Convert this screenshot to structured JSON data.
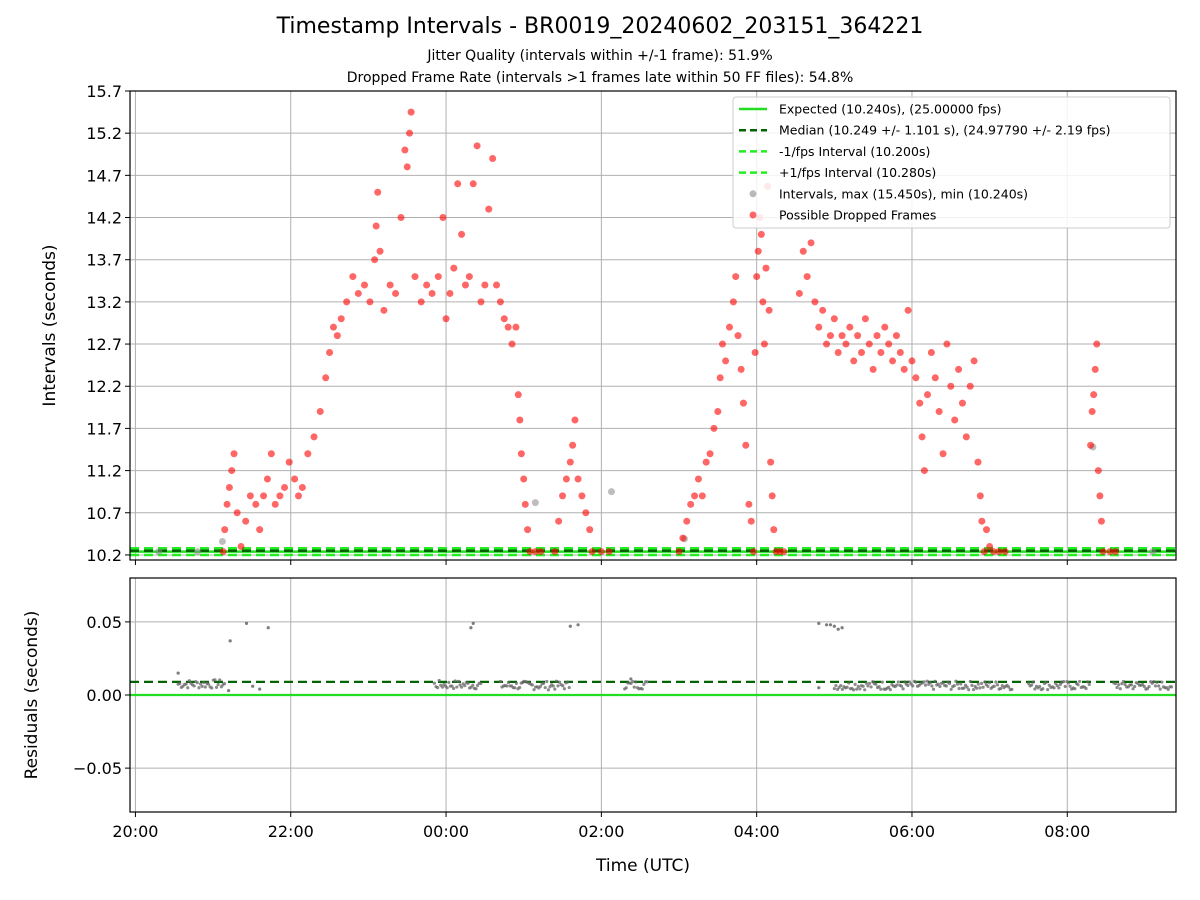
{
  "chart_data": [
    {
      "type": "scatter",
      "title": "Timestamp Intervals - BR0019_20240602_203151_364221",
      "subtitle_lines": [
        "Jitter Quality (intervals within +/-1 frame): 51.9%",
        "Dropped Frame Rate (intervals >1 frames late within 50 FF files): 54.8%"
      ],
      "xlabel": "",
      "ylabel": "Intervals (seconds)",
      "x_unit": "hours since 20:00 UTC",
      "xlim": [
        -0.07,
        13.4
      ],
      "ylim": [
        10.14,
        15.7
      ],
      "yticks": [
        10.2,
        10.7,
        11.2,
        11.7,
        12.2,
        12.7,
        13.2,
        13.7,
        14.2,
        14.7,
        15.2,
        15.7
      ],
      "ytick_labels": [
        "10.2",
        "10.7",
        "11.2",
        "11.7",
        "12.2",
        "12.7",
        "13.2",
        "13.7",
        "14.2",
        "14.7",
        "15.2",
        "15.7"
      ],
      "grid": true,
      "legend_position": "top-right",
      "legend": [
        "Expected (10.240s), (25.00000 fps)",
        "Median (10.249 +/- 1.101 s), (24.97790 +/- 2.19 fps)",
        "-1/fps Interval (10.200s)",
        "+1/fps Interval (10.280s)",
        "Intervals, max (15.450s), min (10.240s)",
        "Possible Dropped Frames"
      ],
      "reference_lines": [
        {
          "name": "Expected",
          "y": 10.24,
          "color": "#22dd22",
          "style": "solid"
        },
        {
          "name": "Median",
          "y": 10.249,
          "color": "#006400",
          "style": "dashed"
        },
        {
          "name": "-1/fps",
          "y": 10.2,
          "color": "#22ee22",
          "style": "dashed"
        },
        {
          "name": "+1/fps",
          "y": 10.28,
          "color": "#22ee22",
          "style": "dashed"
        }
      ],
      "series": [
        {
          "name": "Possible Dropped Frames",
          "color": "#ff0000",
          "points": [
            [
              1.13,
              10.24
            ],
            [
              1.15,
              10.5
            ],
            [
              1.18,
              10.8
            ],
            [
              1.21,
              11.0
            ],
            [
              1.24,
              11.2
            ],
            [
              1.27,
              11.4
            ],
            [
              1.31,
              10.7
            ],
            [
              1.36,
              10.3
            ],
            [
              1.42,
              10.6
            ],
            [
              1.48,
              10.9
            ],
            [
              1.55,
              10.8
            ],
            [
              1.6,
              10.5
            ],
            [
              1.65,
              10.9
            ],
            [
              1.7,
              11.1
            ],
            [
              1.75,
              11.4
            ],
            [
              1.8,
              10.8
            ],
            [
              1.86,
              10.9
            ],
            [
              1.92,
              11.0
            ],
            [
              1.98,
              11.3
            ],
            [
              2.05,
              11.1
            ],
            [
              2.1,
              10.9
            ],
            [
              2.15,
              11.0
            ],
            [
              2.22,
              11.4
            ],
            [
              2.3,
              11.6
            ],
            [
              2.38,
              11.9
            ],
            [
              2.45,
              12.3
            ],
            [
              2.5,
              12.6
            ],
            [
              2.55,
              12.9
            ],
            [
              2.6,
              12.8
            ],
            [
              2.65,
              13.0
            ],
            [
              2.72,
              13.2
            ],
            [
              2.8,
              13.5
            ],
            [
              2.87,
              13.3
            ],
            [
              2.95,
              13.4
            ],
            [
              3.02,
              13.2
            ],
            [
              3.08,
              13.7
            ],
            [
              3.1,
              14.1
            ],
            [
              3.12,
              14.5
            ],
            [
              3.15,
              13.8
            ],
            [
              3.2,
              13.1
            ],
            [
              3.28,
              13.4
            ],
            [
              3.35,
              13.3
            ],
            [
              3.42,
              14.2
            ],
            [
              3.47,
              15.0
            ],
            [
              3.5,
              14.8
            ],
            [
              3.53,
              15.2
            ],
            [
              3.55,
              15.45
            ],
            [
              3.6,
              13.5
            ],
            [
              3.68,
              13.2
            ],
            [
              3.75,
              13.4
            ],
            [
              3.82,
              13.3
            ],
            [
              3.9,
              13.5
            ],
            [
              3.96,
              14.2
            ],
            [
              4.0,
              13.0
            ],
            [
              4.05,
              13.3
            ],
            [
              4.1,
              13.6
            ],
            [
              4.15,
              14.6
            ],
            [
              4.2,
              14.0
            ],
            [
              4.25,
              13.4
            ],
            [
              4.3,
              13.5
            ],
            [
              4.35,
              14.6
            ],
            [
              4.4,
              15.05
            ],
            [
              4.45,
              13.2
            ],
            [
              4.5,
              13.4
            ],
            [
              4.55,
              14.3
            ],
            [
              4.6,
              14.9
            ],
            [
              4.65,
              13.4
            ],
            [
              4.7,
              13.2
            ],
            [
              4.75,
              13.0
            ],
            [
              4.8,
              12.9
            ],
            [
              4.85,
              12.7
            ],
            [
              4.9,
              12.9
            ],
            [
              4.93,
              12.1
            ],
            [
              4.95,
              11.8
            ],
            [
              4.97,
              11.4
            ],
            [
              5.0,
              11.1
            ],
            [
              5.02,
              10.8
            ],
            [
              5.05,
              10.5
            ],
            [
              5.08,
              10.24
            ],
            [
              5.15,
              10.24
            ],
            [
              5.22,
              10.24
            ],
            [
              5.4,
              10.24
            ],
            [
              5.45,
              10.6
            ],
            [
              5.5,
              10.9
            ],
            [
              5.55,
              11.1
            ],
            [
              5.6,
              11.3
            ],
            [
              5.63,
              11.5
            ],
            [
              5.66,
              11.8
            ],
            [
              5.7,
              11.1
            ],
            [
              5.75,
              10.9
            ],
            [
              5.8,
              10.7
            ],
            [
              5.85,
              10.5
            ],
            [
              5.88,
              10.24
            ],
            [
              6.0,
              10.24
            ],
            [
              6.1,
              10.24
            ],
            [
              7.0,
              10.24
            ],
            [
              7.05,
              10.4
            ],
            [
              7.1,
              10.6
            ],
            [
              7.15,
              10.8
            ],
            [
              7.2,
              10.9
            ],
            [
              7.25,
              11.1
            ],
            [
              7.3,
              10.9
            ],
            [
              7.35,
              11.3
            ],
            [
              7.4,
              11.4
            ],
            [
              7.45,
              11.7
            ],
            [
              7.5,
              11.9
            ],
            [
              7.53,
              12.3
            ],
            [
              7.56,
              12.7
            ],
            [
              7.6,
              12.5
            ],
            [
              7.65,
              12.9
            ],
            [
              7.7,
              13.2
            ],
            [
              7.73,
              13.5
            ],
            [
              7.76,
              12.8
            ],
            [
              7.8,
              12.4
            ],
            [
              7.83,
              12.0
            ],
            [
              7.86,
              11.5
            ],
            [
              7.9,
              10.8
            ],
            [
              7.93,
              10.6
            ],
            [
              7.96,
              10.24
            ],
            [
              7.98,
              12.6
            ],
            [
              8.0,
              13.5
            ],
            [
              8.02,
              13.8
            ],
            [
              8.04,
              14.2
            ],
            [
              8.06,
              14.0
            ],
            [
              8.08,
              13.2
            ],
            [
              8.1,
              12.7
            ],
            [
              8.12,
              13.6
            ],
            [
              8.14,
              14.57
            ],
            [
              8.16,
              13.1
            ],
            [
              8.18,
              11.3
            ],
            [
              8.2,
              10.9
            ],
            [
              8.22,
              10.5
            ],
            [
              8.25,
              10.24
            ],
            [
              8.3,
              10.24
            ],
            [
              8.35,
              10.24
            ],
            [
              8.55,
              13.3
            ],
            [
              8.6,
              13.8
            ],
            [
              8.65,
              13.5
            ],
            [
              8.7,
              13.9
            ],
            [
              8.75,
              13.2
            ],
            [
              8.8,
              12.9
            ],
            [
              8.85,
              13.1
            ],
            [
              8.9,
              12.7
            ],
            [
              8.95,
              12.8
            ],
            [
              9.0,
              13.0
            ],
            [
              9.05,
              12.6
            ],
            [
              9.1,
              12.8
            ],
            [
              9.15,
              12.7
            ],
            [
              9.2,
              12.9
            ],
            [
              9.25,
              12.5
            ],
            [
              9.3,
              12.8
            ],
            [
              9.35,
              12.6
            ],
            [
              9.4,
              13.0
            ],
            [
              9.45,
              12.7
            ],
            [
              9.5,
              12.4
            ],
            [
              9.55,
              12.8
            ],
            [
              9.6,
              12.6
            ],
            [
              9.65,
              12.9
            ],
            [
              9.7,
              12.7
            ],
            [
              9.75,
              12.5
            ],
            [
              9.8,
              12.8
            ],
            [
              9.85,
              12.6
            ],
            [
              9.9,
              12.4
            ],
            [
              9.95,
              13.1
            ],
            [
              10.0,
              12.5
            ],
            [
              10.05,
              12.3
            ],
            [
              10.1,
              12.0
            ],
            [
              10.13,
              11.6
            ],
            [
              10.16,
              11.2
            ],
            [
              10.2,
              12.1
            ],
            [
              10.25,
              12.6
            ],
            [
              10.3,
              12.3
            ],
            [
              10.35,
              11.9
            ],
            [
              10.4,
              11.4
            ],
            [
              10.45,
              12.7
            ],
            [
              10.5,
              12.2
            ],
            [
              10.55,
              11.8
            ],
            [
              10.6,
              12.4
            ],
            [
              10.65,
              12.0
            ],
            [
              10.7,
              11.6
            ],
            [
              10.75,
              12.2
            ],
            [
              10.8,
              12.5
            ],
            [
              10.85,
              11.3
            ],
            [
              10.88,
              10.9
            ],
            [
              10.9,
              10.6
            ],
            [
              10.93,
              10.24
            ],
            [
              10.96,
              10.5
            ],
            [
              11.0,
              10.3
            ],
            [
              11.05,
              10.24
            ],
            [
              11.12,
              10.24
            ],
            [
              11.2,
              10.24
            ],
            [
              12.3,
              11.5
            ],
            [
              12.32,
              11.9
            ],
            [
              12.34,
              12.1
            ],
            [
              12.36,
              12.4
            ],
            [
              12.38,
              12.7
            ],
            [
              12.4,
              11.2
            ],
            [
              12.42,
              10.9
            ],
            [
              12.44,
              10.6
            ],
            [
              12.46,
              10.24
            ],
            [
              12.55,
              10.24
            ],
            [
              12.62,
              10.24
            ]
          ]
        },
        {
          "name": "Intervals, max (15.450s), min (10.240s)",
          "color": "#888888",
          "points": [
            [
              0.3,
              10.24
            ],
            [
              0.8,
              10.24
            ],
            [
              1.12,
              10.36
            ],
            [
              5.15,
              10.82
            ],
            [
              6.13,
              10.95
            ],
            [
              7.07,
              10.39
            ],
            [
              12.33,
              11.48
            ],
            [
              13.1,
              10.24
            ]
          ]
        }
      ]
    },
    {
      "type": "scatter",
      "xlabel": "Time (UTC)",
      "ylabel": "Residuals (seconds)",
      "x_unit": "hours since 20:00 UTC",
      "xlim": [
        -0.07,
        13.4
      ],
      "ylim": [
        -0.08,
        0.08
      ],
      "yticks": [
        -0.05,
        0.0,
        0.05
      ],
      "ytick_labels": [
        "−0.05",
        "0.00",
        "0.05"
      ],
      "xticks": [
        0,
        2,
        4,
        6,
        8,
        10,
        12
      ],
      "xtick_labels": [
        "20:00",
        "22:00",
        "00:00",
        "02:00",
        "04:00",
        "06:00",
        "08:00"
      ],
      "grid": true,
      "reference_lines": [
        {
          "name": "Median",
          "y": 0.009,
          "color": "#006400",
          "style": "dashed"
        },
        {
          "name": "Expected",
          "y": 0.0,
          "color": "#22dd22",
          "style": "solid"
        }
      ],
      "clusters": [
        {
          "x_range": [
            0.55,
            1.15
          ],
          "y": 0.0075
        },
        {
          "x_range": [
            3.85,
            4.45
          ],
          "y": 0.007
        },
        {
          "x_range": [
            4.7,
            5.6
          ],
          "y": 0.0065
        },
        {
          "x_range": [
            6.3,
            6.6
          ],
          "y": 0.007
        },
        {
          "x_range": [
            9.0,
            11.3
          ],
          "y": 0.0065
        },
        {
          "x_range": [
            11.5,
            12.3
          ],
          "y": 0.0065
        },
        {
          "x_range": [
            12.6,
            13.5
          ],
          "y": 0.0065
        }
      ],
      "outliers": [
        [
          0.55,
          0.015
        ],
        [
          1.2,
          0.003
        ],
        [
          1.22,
          0.037
        ],
        [
          1.43,
          0.049
        ],
        [
          1.51,
          0.006
        ],
        [
          1.6,
          0.004
        ],
        [
          1.71,
          0.046
        ],
        [
          4.32,
          0.046
        ],
        [
          4.35,
          0.049
        ],
        [
          5.6,
          0.047
        ],
        [
          5.7,
          0.048
        ],
        [
          6.38,
          0.011
        ],
        [
          8.8,
          0.005
        ],
        [
          8.8,
          0.049
        ],
        [
          8.9,
          0.048
        ],
        [
          8.95,
          0.048
        ],
        [
          9.0,
          0.047
        ],
        [
          9.05,
          0.045
        ],
        [
          9.1,
          0.046
        ]
      ]
    }
  ]
}
